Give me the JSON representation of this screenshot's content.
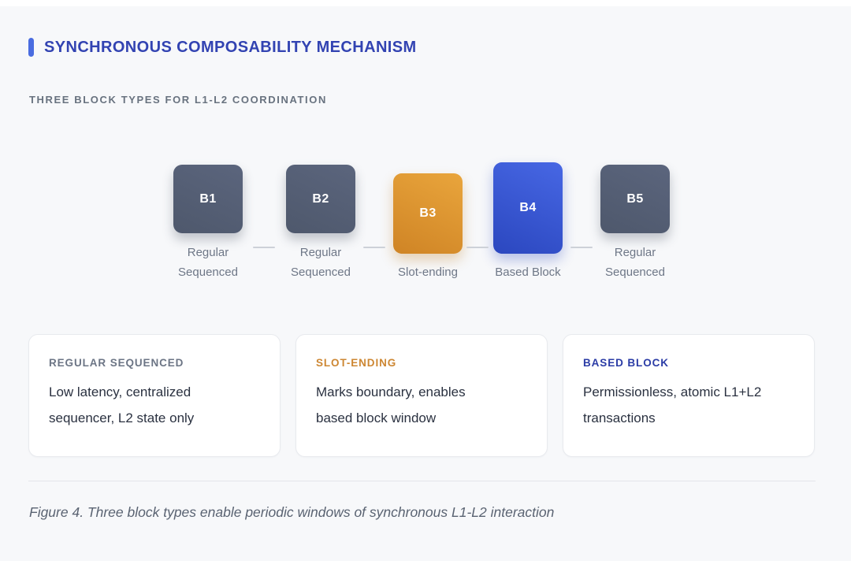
{
  "header": {
    "title": "SYNCHRONOUS COMPOSABILITY MECHANISM",
    "subtitle": "THREE BLOCK TYPES FOR L1-L2 COORDINATION"
  },
  "diagram": {
    "blocks": [
      {
        "id": "B1",
        "label": "Regular\nSequenced",
        "type": "regular-sequenced"
      },
      {
        "id": "B2",
        "label": "Regular\nSequenced",
        "type": "regular-sequenced"
      },
      {
        "id": "B3",
        "label": "Slot-ending",
        "type": "slot-ending"
      },
      {
        "id": "B4",
        "label": "Based Block",
        "type": "based-block"
      },
      {
        "id": "B5",
        "label": "Regular\nSequenced",
        "type": "regular-sequenced"
      }
    ]
  },
  "cards": [
    {
      "title": "REGULAR SEQUENCED",
      "body": "Low latency, centralized\nsequencer, L2 state only"
    },
    {
      "title": "SLOT-ENDING",
      "body": "Marks boundary, enables\nbased block window"
    },
    {
      "title": "BASED BLOCK",
      "body": "Permissionless, atomic L1+L2\ntransactions"
    }
  ],
  "caption": "Figure 4. Three block types enable periodic windows of synchronous L1-L2 interaction",
  "colors": {
    "background": "#f7f8fa",
    "accent_bar_blue": "#4a6ce0",
    "title_blue": "#3243b2",
    "subtitle_gray": "#68727f",
    "block_slate": "#545e74",
    "block_orange": "#dd942f",
    "block_blue": "#3856d2",
    "connector_gray": "#cdd1d8",
    "card_title_gray": "#6c7585",
    "card_title_orange": "#cd8733",
    "card_title_navy": "#2b3ca6",
    "card_body_text": "#2a3140",
    "caption_gray": "#5a6372"
  }
}
